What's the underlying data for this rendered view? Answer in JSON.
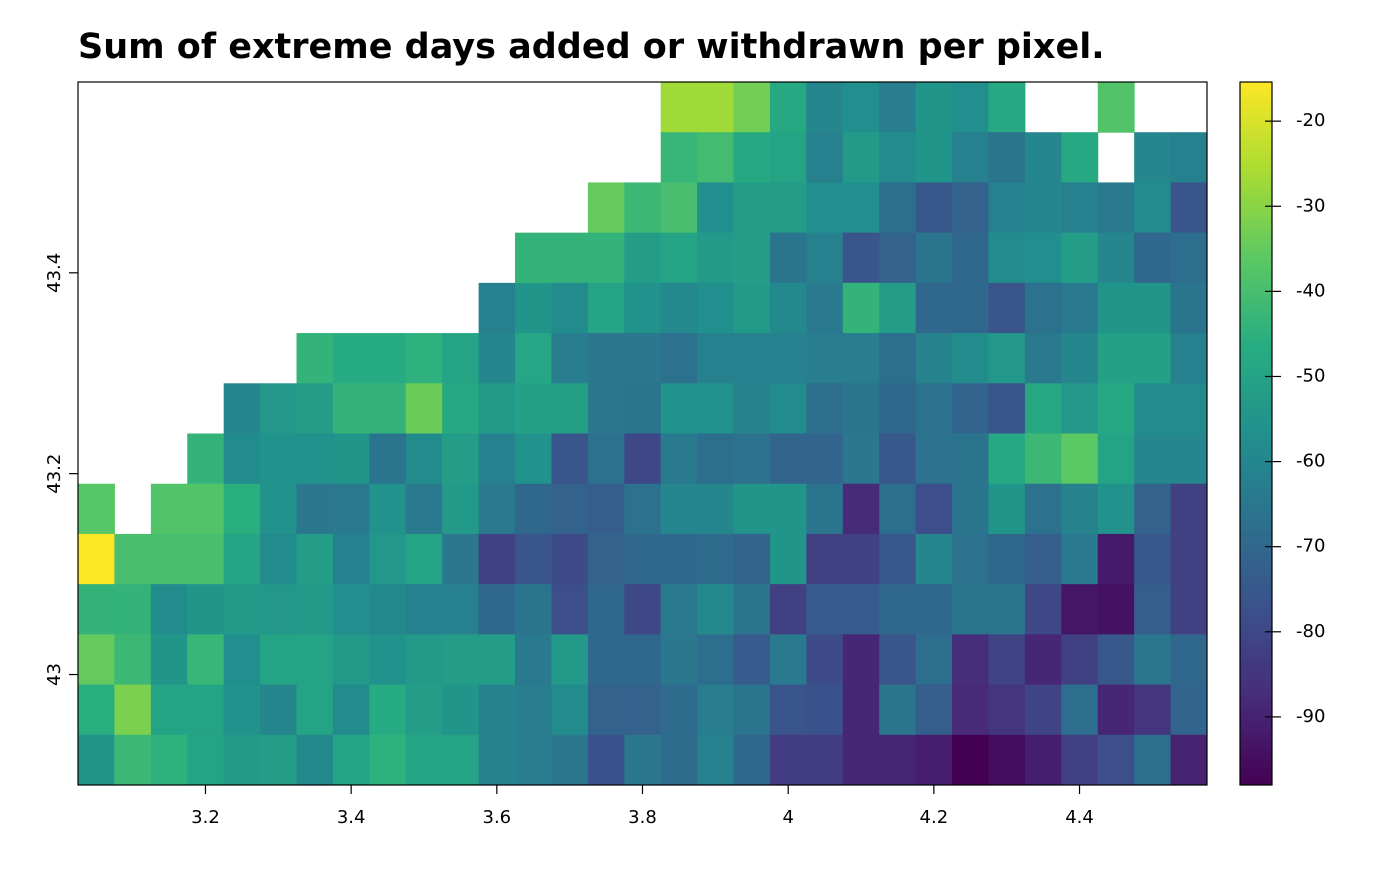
{
  "chart_data": {
    "type": "heatmap",
    "title": "Sum of extreme days added or withdrawn per pixel.",
    "x": [
      3.05,
      3.1,
      3.15,
      3.2,
      3.25,
      3.3,
      3.35,
      3.4,
      3.45,
      3.5,
      3.55,
      3.6,
      3.65,
      3.7,
      3.75,
      3.8,
      3.85,
      3.9,
      3.95,
      4.0,
      4.05,
      4.1,
      4.15,
      4.2,
      4.25,
      4.3,
      4.35,
      4.4,
      4.45,
      4.5,
      4.55
    ],
    "y": [
      43.565,
      43.515,
      43.465,
      43.415,
      43.365,
      43.315,
      43.265,
      43.215,
      43.165,
      43.115,
      43.065,
      43.015,
      42.965,
      42.915
    ],
    "z": [
      [
        null,
        null,
        null,
        null,
        null,
        null,
        null,
        null,
        null,
        null,
        null,
        null,
        null,
        null,
        null,
        null,
        -27,
        -27,
        -33,
        -48,
        -60,
        -57,
        -63,
        -55,
        -57,
        -48,
        null,
        null,
        -38,
        null,
        null
      ],
      [
        null,
        null,
        null,
        null,
        null,
        null,
        null,
        null,
        null,
        null,
        null,
        null,
        null,
        null,
        null,
        null,
        -43,
        -41,
        -48,
        -50,
        -62,
        -53,
        -58,
        -55,
        -62,
        -66,
        -60,
        -48,
        null,
        -60,
        -62
      ],
      [
        null,
        null,
        null,
        null,
        null,
        null,
        null,
        null,
        null,
        null,
        null,
        null,
        null,
        null,
        -35,
        -42,
        -40,
        -57,
        -52,
        -52,
        -57,
        -57,
        -68,
        -75,
        -72,
        -62,
        -60,
        -62,
        -64,
        -58,
        -76
      ],
      [
        null,
        null,
        null,
        null,
        null,
        null,
        null,
        null,
        null,
        null,
        null,
        null,
        -44,
        -44,
        -44,
        -52,
        -50,
        -53,
        -52,
        -66,
        -62,
        -76,
        -72,
        -66,
        -70,
        -58,
        -57,
        -52,
        -60,
        -70,
        -68
      ],
      [
        null,
        null,
        null,
        null,
        null,
        null,
        null,
        null,
        null,
        null,
        null,
        -62,
        -55,
        -58,
        -50,
        -56,
        -59,
        -57,
        -53,
        -59,
        -64,
        -44,
        -52,
        -70,
        -70,
        -76,
        -67,
        -64,
        -55,
        -55,
        -66
      ],
      [
        null,
        null,
        null,
        null,
        null,
        null,
        -44,
        -47,
        -47,
        -45,
        -50,
        -60,
        -49,
        -63,
        -65,
        -65,
        -67,
        -62,
        -62,
        -62,
        -63,
        -63,
        -68,
        -61,
        -58,
        -54,
        -64,
        -60,
        -51,
        -51,
        -62
      ],
      [
        null,
        null,
        null,
        null,
        -60,
        -54,
        -52,
        -44,
        -44,
        -34,
        -48,
        -53,
        -51,
        -51,
        -65,
        -66,
        -56,
        -56,
        -61,
        -58,
        -68,
        -66,
        -70,
        -67,
        -71,
        -76,
        -48,
        -54,
        -48,
        -58,
        -58
      ],
      [
        null,
        null,
        null,
        -44,
        -58,
        -56,
        -56,
        -55,
        -66,
        -58,
        -52,
        -62,
        -56,
        -76,
        -67,
        -80,
        -64,
        -68,
        -67,
        -71,
        -71,
        -65,
        -75,
        -67,
        -66,
        -48,
        -42,
        -36,
        -50,
        -60,
        -60
      ],
      [
        -37,
        null,
        -38,
        -38,
        -46,
        -56,
        -65,
        -64,
        -56,
        -64,
        -53,
        -64,
        -70,
        -72,
        -73,
        -67,
        -60,
        -60,
        -55,
        -55,
        -66,
        -88,
        -68,
        -78,
        -66,
        -55,
        -67,
        -61,
        -56,
        -72,
        -82
      ],
      [
        -15,
        -40,
        -40,
        -40,
        -50,
        -58,
        -52,
        -62,
        -54,
        -50,
        -65,
        -82,
        -76,
        -79,
        -72,
        -70,
        -70,
        -69,
        -71,
        -55,
        -82,
        -82,
        -75,
        -60,
        -67,
        -70,
        -73,
        -64,
        -92,
        -75,
        -82
      ],
      [
        -44,
        -44,
        -58,
        -55,
        -53,
        -54,
        -53,
        -57,
        -59,
        -62,
        -62,
        -70,
        -66,
        -78,
        -70,
        -80,
        -64,
        -59,
        -66,
        -82,
        -74,
        -74,
        -70,
        -70,
        -66,
        -66,
        -80,
        -93,
        -94,
        -73,
        -82
      ],
      [
        -35,
        -42,
        -55,
        -43,
        -57,
        -50,
        -50,
        -53,
        -56,
        -53,
        -52,
        -52,
        -64,
        -53,
        -70,
        -70,
        -65,
        -68,
        -74,
        -64,
        -79,
        -89,
        -76,
        -68,
        -87,
        -81,
        -89,
        -82,
        -75,
        -65,
        -70
      ],
      [
        -46,
        -32,
        -50,
        -50,
        -56,
        -60,
        -50,
        -58,
        -47,
        -52,
        -55,
        -61,
        -63,
        -58,
        -72,
        -72,
        -69,
        -63,
        -66,
        -76,
        -77,
        -89,
        -66,
        -73,
        -88,
        -85,
        -81,
        -68,
        -89,
        -85,
        -71
      ],
      [
        -55,
        -42,
        -45,
        -50,
        -53,
        -52,
        -59,
        -50,
        -45,
        -50,
        -50,
        -61,
        -63,
        -65,
        -77,
        -65,
        -69,
        -62,
        -70,
        -83,
        -83,
        -89,
        -89,
        -91,
        -98,
        -95,
        -91,
        -82,
        -78,
        -68,
        -90
      ]
    ],
    "xlim": [
      3.025,
      4.575
    ],
    "ylim": [
      42.89,
      43.59
    ],
    "xticks": [
      3.2,
      3.4,
      3.6,
      3.8,
      4,
      4.2,
      4.4
    ],
    "yticks": [
      43,
      43.2,
      43.4
    ],
    "colorbar": {
      "lim": [
        -98,
        -15.4
      ],
      "ticks": [
        -20,
        -30,
        -40,
        -50,
        -60,
        -70,
        -80,
        -90
      ],
      "colors": [
        "#440154",
        "#472c7a",
        "#3b518b",
        "#2c718e",
        "#21908d",
        "#27ad81",
        "#5cc863",
        "#aadc32",
        "#fde725"
      ]
    }
  }
}
